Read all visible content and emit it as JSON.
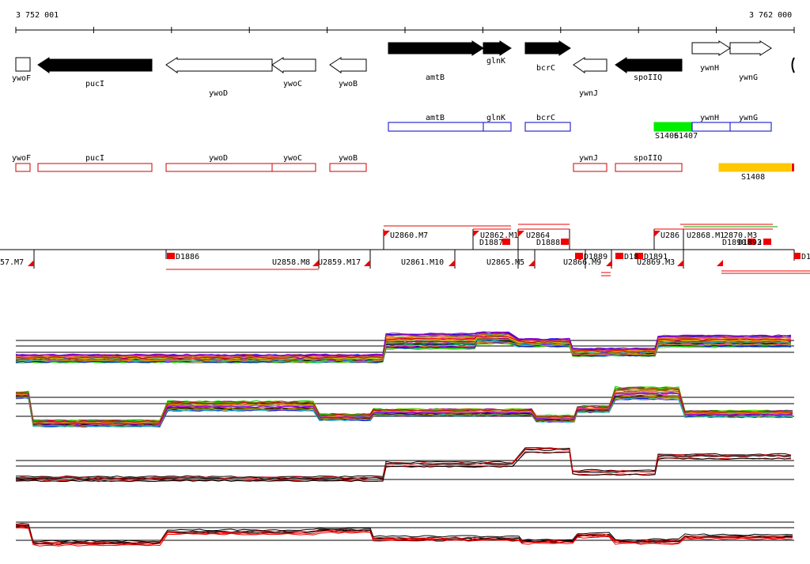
{
  "ruler": {
    "start_label": "3 752 001",
    "end_label": "3 762 000",
    "start_bp": 3752001,
    "end_bp": 3762000
  },
  "colors": {
    "gene_fill": "#000000",
    "utr_outline": "#0000cc",
    "cds_outline": "#cc0000",
    "s1406_fill": "#00ee00",
    "s1408_fill": "#ffc800",
    "segment_red": "#ee0000"
  },
  "genes": [
    {
      "name": "ywoF",
      "strand": "none",
      "filled": false
    },
    {
      "name": "pucI",
      "strand": "-",
      "filled": true
    },
    {
      "name": "ywoD",
      "strand": "-",
      "filled": false
    },
    {
      "name": "ywoC",
      "strand": "-",
      "filled": false
    },
    {
      "name": "ywoB",
      "strand": "-",
      "filled": false
    },
    {
      "name": "amtB",
      "strand": "+",
      "filled": true
    },
    {
      "name": "glnK",
      "strand": "+",
      "filled": true
    },
    {
      "name": "bcrC",
      "strand": "+",
      "filled": true
    },
    {
      "name": "ywnJ",
      "strand": "-",
      "filled": false
    },
    {
      "name": "spoIIQ",
      "strand": "-",
      "filled": true
    },
    {
      "name": "ywnH",
      "strand": "+",
      "filled": false
    },
    {
      "name": "ywnG",
      "strand": "+",
      "filled": false
    }
  ],
  "blue_track": [
    "amtB",
    "glnK",
    "bcrC",
    "ywnH",
    "ywnG"
  ],
  "blue_extra_label": "S1406",
  "blue_extra_label2": "S1407",
  "red_track": [
    "ywoF",
    "pucI",
    "ywoD",
    "ywoC",
    "ywoB",
    "ywnJ",
    "spoIIQ"
  ],
  "orange_label": "S1408",
  "segment_labels_top": [
    "U2860.M7",
    "U2862.M1",
    "D1887",
    "U2864",
    "D1888",
    "U286",
    "U2868.M1",
    "2870.M3",
    "D1890",
    "D1892",
    "3"
  ],
  "segment_labels_bottom": [
    "57.M7",
    "D1886",
    "U2858.M8",
    "U2859.M17",
    "U2861.M10",
    "U2865.M5",
    "U2866.M9",
    "D1889",
    "D18",
    "D1891",
    "U2869.M3",
    "D1"
  ],
  "expression_tracks": [
    "panel-1",
    "panel-2",
    "panel-3",
    "panel-4"
  ]
}
